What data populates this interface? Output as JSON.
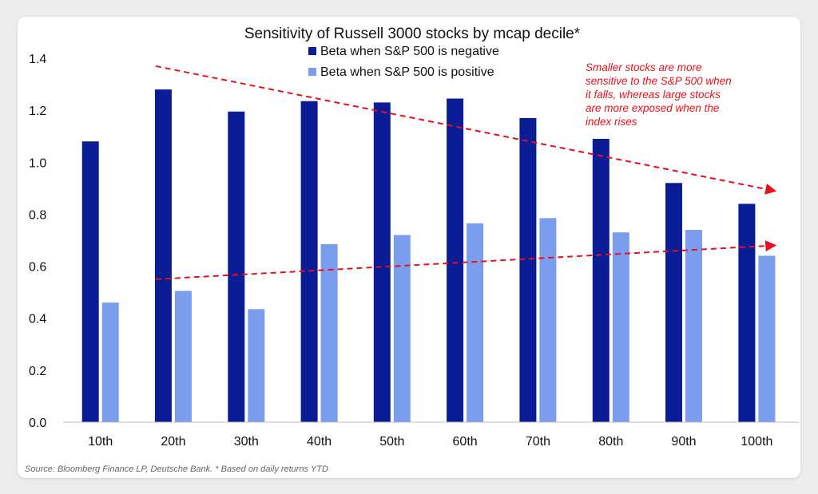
{
  "chart_data": {
    "type": "bar",
    "title": "Sensitivity of Russell 3000 stocks by mcap decile*",
    "categories": [
      "10th",
      "20th",
      "30th",
      "40th",
      "50th",
      "60th",
      "70th",
      "80th",
      "90th",
      "100th"
    ],
    "series": [
      {
        "name": "Beta when S&P 500 is negative",
        "color": "#0a1d96",
        "values": [
          1.08,
          1.28,
          1.195,
          1.235,
          1.23,
          1.245,
          1.17,
          1.09,
          0.92,
          0.84
        ]
      },
      {
        "name": "Beta when S&P 500 is positive",
        "color": "#7b9ded",
        "values": [
          0.46,
          0.505,
          0.435,
          0.685,
          0.72,
          0.765,
          0.785,
          0.73,
          0.74,
          0.64
        ]
      }
    ],
    "ylim": [
      0,
      1.4
    ],
    "yticks": [
      "0.0",
      "0.2",
      "0.4",
      "0.6",
      "0.8",
      "1.0",
      "1.2",
      "1.4"
    ],
    "xlabel": "",
    "ylabel": "",
    "legend_position": "top-center",
    "grid": false,
    "trend_lines": [
      {
        "name": "falling trend",
        "from": {
          "x": "20th",
          "y": 1.37
        },
        "to": {
          "x": "100th",
          "y": 0.89
        }
      },
      {
        "name": "rising trend",
        "from": {
          "x": "20th",
          "y": 0.55
        },
        "to": {
          "x": "100th",
          "y": 0.68
        }
      }
    ],
    "annotation": {
      "lines": [
        "Smaller stocks are more",
        "sensitive to the S&P 500 when",
        "it falls, whereas large stocks",
        "are more exposed when the",
        "index rises"
      ],
      "color": "#e8101a"
    }
  },
  "footer": {
    "source": "Source: Bloomberg Finance LP, Deutsche Bank. * Based on daily returns YTD"
  }
}
